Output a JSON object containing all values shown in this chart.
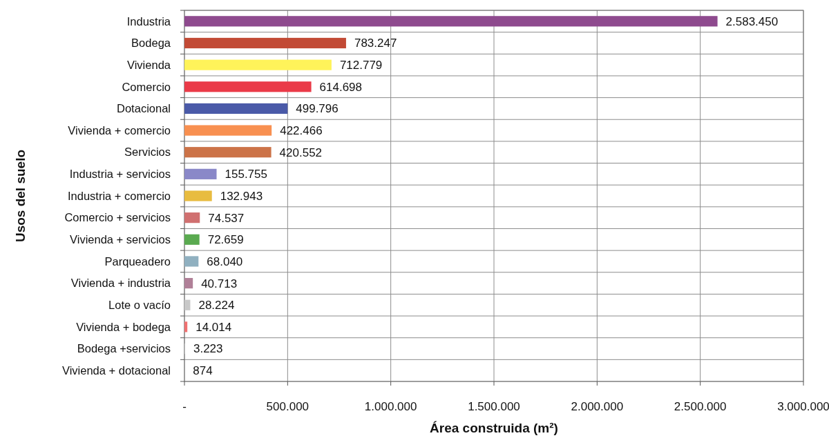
{
  "chart_data": {
    "type": "bar",
    "orientation": "horizontal",
    "xlabel": "Área construida (m²)",
    "ylabel": "Usos del suelo",
    "categories": [
      "Industria",
      "Bodega",
      "Vivienda",
      "Comercio",
      "Dotacional",
      "Vivienda + comercio",
      "Servicios",
      "Industria + servicios",
      "Industria + comercio",
      "Comercio + servicios",
      "Vivienda + servicios",
      "Parqueadero",
      "Vivienda + industria",
      "Lote o vacío",
      "Vivienda + bodega",
      "Bodega +servicios",
      "Vivienda + dotacional"
    ],
    "values": [
      2583450,
      783247,
      712779,
      614698,
      499796,
      422466,
      420552,
      155755,
      132943,
      74537,
      72659,
      68040,
      40713,
      28224,
      14014,
      3223,
      874
    ],
    "value_labels": [
      "2.583.450",
      "783.247",
      "712.779",
      "614.698",
      "499.796",
      "422.466",
      "420.552",
      "155.755",
      "132.943",
      "74.537",
      "72.659",
      "68.040",
      "40.713",
      "28.224",
      "14.014",
      "3.223",
      "874"
    ],
    "colors": [
      "#8e4a8e",
      "#c24a35",
      "#fff35a",
      "#ea3a48",
      "#4a5aa8",
      "#f89050",
      "#cc7348",
      "#8a88c8",
      "#e8bc40",
      "#d07070",
      "#5aaa50",
      "#90b0c0",
      "#b08098",
      "#c8c8c8",
      "#f07070",
      "#c0c0c0",
      "#a0a0a0"
    ],
    "xlim": [
      0,
      3000000
    ],
    "xticks": [
      {
        "value": 0,
        "label": "-"
      },
      {
        "value": 500000,
        "label": "500.000"
      },
      {
        "value": 1000000,
        "label": "1.000.000"
      },
      {
        "value": 1500000,
        "label": "1.500.000"
      },
      {
        "value": 2000000,
        "label": "2.000.000"
      },
      {
        "value": 2500000,
        "label": "2.500.000"
      },
      {
        "value": 3000000,
        "label": "3.000.000"
      }
    ],
    "grid": true
  }
}
